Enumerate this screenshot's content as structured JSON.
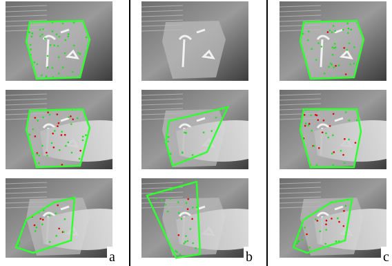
{
  "labels": [
    "a",
    "b",
    "c"
  ]
}
